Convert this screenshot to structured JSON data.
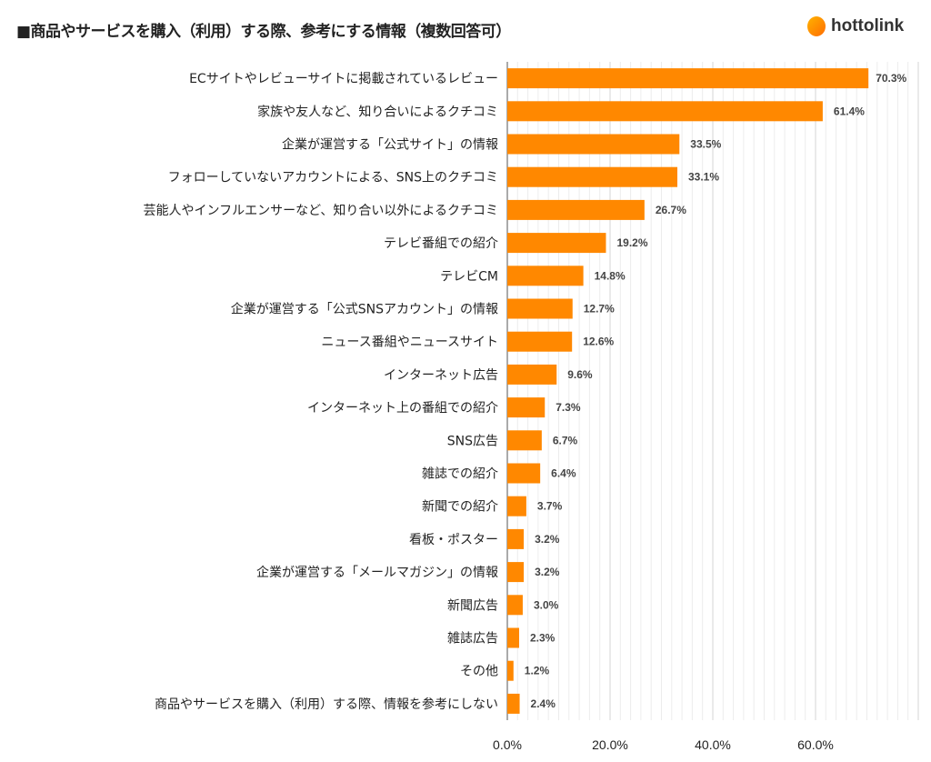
{
  "title": "■商品やサービスを購入（利用）する際、参考にする情報（複数回答可）",
  "logo": {
    "text": "hottolink"
  },
  "chart_data": {
    "type": "bar",
    "orientation": "horizontal",
    "title": "■商品やサービスを購入（利用）する際、参考にする情報（複数回答可）",
    "categories": [
      "ECサイトやレビューサイトに掲載されているレビュー",
      "家族や友人など、知り合いによるクチコミ",
      "企業が運営する「公式サイト」の情報",
      "フォローしていないアカウントによる、SNS上のクチコミ",
      "芸能人やインフルエンサーなど、知り合い以外によるクチコミ",
      "テレビ番組での紹介",
      "テレビCM",
      "企業が運営する「公式SNSアカウント」の情報",
      "ニュース番組やニュースサイト",
      "インターネット広告",
      "インターネット上の番組での紹介",
      "SNS広告",
      "雑誌での紹介",
      "新聞での紹介",
      "看板・ポスター",
      "企業が運営する「メールマガジン」の情報",
      "新聞広告",
      "雑誌広告",
      "その他",
      "商品やサービスを購入（利用）する際、情報を参考にしない"
    ],
    "values": [
      70.3,
      61.4,
      33.5,
      33.1,
      26.7,
      19.2,
      14.8,
      12.7,
      12.6,
      9.6,
      7.3,
      6.7,
      6.4,
      3.7,
      3.2,
      3.2,
      3.0,
      2.3,
      1.2,
      2.4
    ],
    "data_labels": [
      "70.3%",
      "61.4%",
      "33.5%",
      "33.1%",
      "26.7%",
      "19.2%",
      "14.8%",
      "12.7%",
      "12.6%",
      "9.6%",
      "7.3%",
      "6.7%",
      "6.4%",
      "3.7%",
      "3.2%",
      "3.2%",
      "3.0%",
      "2.3%",
      "1.2%",
      "2.4%"
    ],
    "xlim": [
      0,
      80
    ],
    "xticks": [
      "0.0%",
      "20.0%",
      "40.0%",
      "60.0%"
    ],
    "grid": true,
    "bar_color": "#ff8800",
    "legend": "none"
  }
}
